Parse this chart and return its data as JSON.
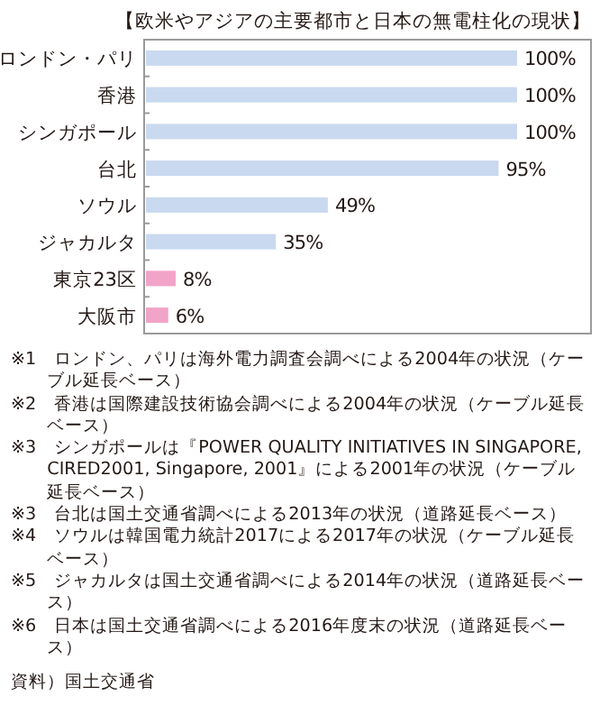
{
  "chart_data": {
    "type": "bar",
    "orientation": "horizontal",
    "title": "【欧米やアジアの主要都市と日本の無電柱化の現状】",
    "categories": [
      "ロンドン・パリ",
      "香港",
      "シンガポール",
      "台北",
      "ソウル",
      "ジャカルタ",
      "東京23区",
      "大阪市"
    ],
    "values": [
      100,
      100,
      100,
      95,
      49,
      35,
      8,
      6
    ],
    "colors": [
      "#c9d9ef",
      "#c9d9ef",
      "#c9d9ef",
      "#c9d9ef",
      "#c9d9ef",
      "#c9d9ef",
      "#f2a3c8",
      "#f2a3c8"
    ],
    "value_labels": [
      "100%",
      "100%",
      "100%",
      "95%",
      "49%",
      "35%",
      "8%",
      "6%"
    ],
    "annotations": [
      "※1　ロンドン、パリは海外電力調査会調べによる2004年の状況（ケーブル延長ベース）",
      "※2　香港は国際建設技術協会調べによる2004年の状況（ケーブル延長ベース）",
      "※3　シンガポールは『POWER QUALITY INITIATIVES IN SINGAPORE, CIRED2001, Singapore, 2001』による2001年の状況（ケーブル延長ベース）",
      "※3　台北は国土交通省調べによる2013年の状況（道路延長ベース）",
      "※4　ソウルは韓国電力統計2017による2017年の状況（ケーブル延長ベース）",
      "※5　ジャカルタは国土交通省調べによる2014年の状況（道路延長ベース）",
      "※6　日本は国土交通省調べによる2016年度末の状況（道路延長ベース）",
      "資料）国土交通省"
    ]
  }
}
